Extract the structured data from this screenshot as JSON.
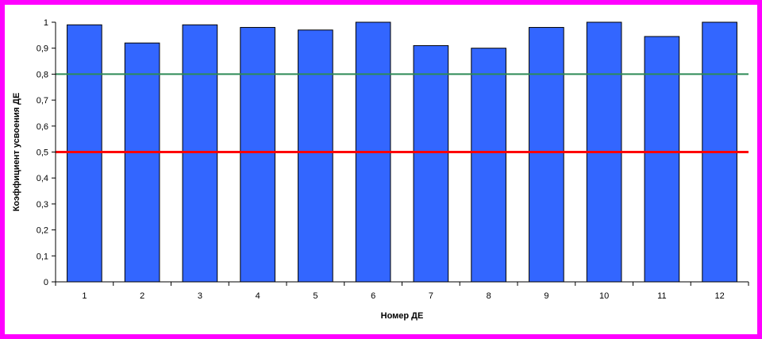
{
  "chart_data": {
    "type": "bar",
    "title": "",
    "xlabel": "Номер ДЕ",
    "ylabel": "Коэффициент усвоения ДЕ",
    "categories": [
      "1",
      "2",
      "3",
      "4",
      "5",
      "6",
      "7",
      "8",
      "9",
      "10",
      "11",
      "12"
    ],
    "values": [
      0.99,
      0.92,
      0.99,
      0.98,
      0.97,
      1.0,
      0.91,
      0.9,
      0.98,
      1.0,
      0.945,
      1.0
    ],
    "ylim": [
      0,
      1
    ],
    "yticks": [
      "0",
      "0,1",
      "0,2",
      "0,3",
      "0,4",
      "0,5",
      "0,6",
      "0,7",
      "0,8",
      "0,9",
      "1"
    ],
    "reference_lines": [
      {
        "value": 0.8,
        "color": "#2e8b57"
      },
      {
        "value": 0.5,
        "color": "#ff0000"
      }
    ],
    "bar_color": "#3366ff",
    "grid": false,
    "legend": "none"
  },
  "colors": {
    "frame": "#ff00ff",
    "bar": "#3366ff",
    "reference_high": "#2e8b57",
    "reference_low": "#ff0000"
  }
}
